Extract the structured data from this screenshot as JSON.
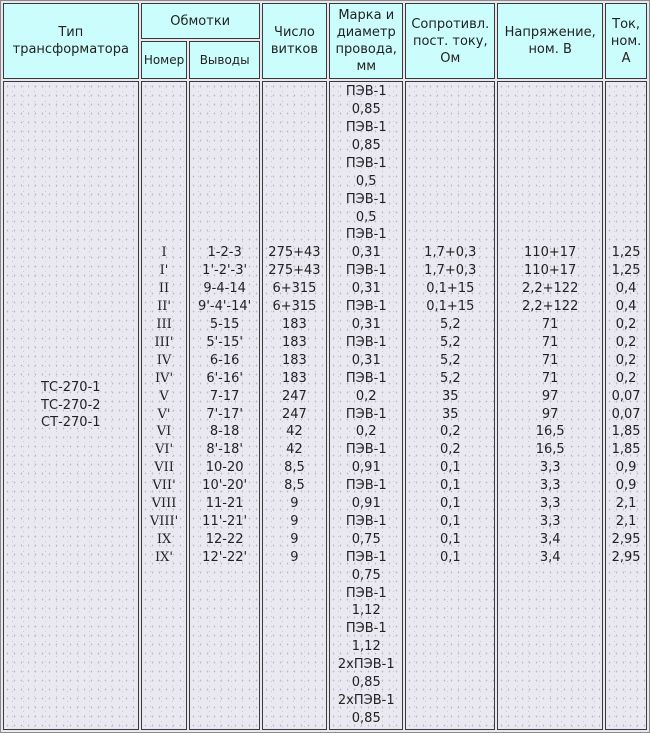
{
  "header": {
    "type": "Тип трансформатора",
    "windings": "Обмотки",
    "number": "Номер",
    "terminals": "Выводы",
    "turns": "Число витков",
    "wire": "Марка и диаметр провода, мм",
    "resistance": "Сопротивл. пост. току, Ом",
    "voltage": "Напряжение, ном. В",
    "current": "Ток, ном. А"
  },
  "colors": {
    "header_bg": "#ccfdfd",
    "body_bg": "#eae9f2"
  },
  "types": [
    "ТС-270-1",
    "ТС-270-2",
    "СТ-270-1"
  ],
  "numbers": [
    "I",
    "I'",
    "II",
    "II'",
    "III",
    "III'",
    "IV",
    "IV'",
    "V",
    "V'",
    "VI",
    "VI'",
    "VII",
    "VII'",
    "VIII",
    "VIII'",
    "IX",
    "IX'"
  ],
  "terminals": [
    "1-2-3",
    "1'-2'-3'",
    "9-4-14",
    "9'-4'-14'",
    "5-15",
    "5'-15'",
    "6-16",
    "6'-16'",
    "7-17",
    "7'-17'",
    "8-18",
    "8'-18'",
    "10-20",
    "10'-20'",
    "11-21",
    "11'-21'",
    "12-22",
    "12'-22'"
  ],
  "turns": [
    "275+43",
    "275+43",
    "6+315",
    "6+315",
    "183",
    "183",
    "183",
    "183",
    "247",
    "247",
    "42",
    "42",
    "8,5",
    "8,5",
    "9",
    "9",
    "9",
    "9"
  ],
  "wire": [
    "ПЭВ-1",
    "0,85",
    "ПЭВ-1",
    "0,85",
    "ПЭВ-1",
    "0,5",
    "ПЭВ-1",
    "0,5",
    "ПЭВ-1",
    "0,31",
    "ПЭВ-1",
    "0,31",
    "ПЭВ-1",
    "0,31",
    "ПЭВ-1",
    "0,31",
    "ПЭВ-1",
    "0,2",
    "ПЭВ-1",
    "0,2",
    "ПЭВ-1",
    "0,91",
    "ПЭВ-1",
    "0,91",
    "ПЭВ-1",
    "0,75",
    "ПЭВ-1",
    "0,75",
    "ПЭВ-1",
    "1,12",
    "ПЭВ-1",
    "1,12",
    "2хПЭВ-1",
    "0,85",
    "2хПЭВ-1",
    "0,85"
  ],
  "resistance": [
    "1,7+0,3",
    "1,7+0,3",
    "0,1+15",
    "0,1+15",
    "5,2",
    "5,2",
    "5,2",
    "5,2",
    "35",
    "35",
    "0,2",
    "0,2",
    "0,1",
    "0,1",
    "0,1",
    "0,1",
    "0,1",
    "0,1"
  ],
  "voltage": [
    "110+17",
    "110+17",
    "2,2+122",
    "2,2+122",
    "71",
    "71",
    "71",
    "71",
    "97",
    "97",
    "16,5",
    "16,5",
    "3,3",
    "3,3",
    "3,3",
    "3,3",
    "3,4",
    "3,4"
  ],
  "current": [
    "1,25",
    "1,25",
    "0,4",
    "0,4",
    "0,2",
    "0,2",
    "0,2",
    "0,2",
    "0,07",
    "0,07",
    "1,85",
    "1,85",
    "0,9",
    "0,9",
    "2,1",
    "2,1",
    "2,95",
    "2,95"
  ]
}
